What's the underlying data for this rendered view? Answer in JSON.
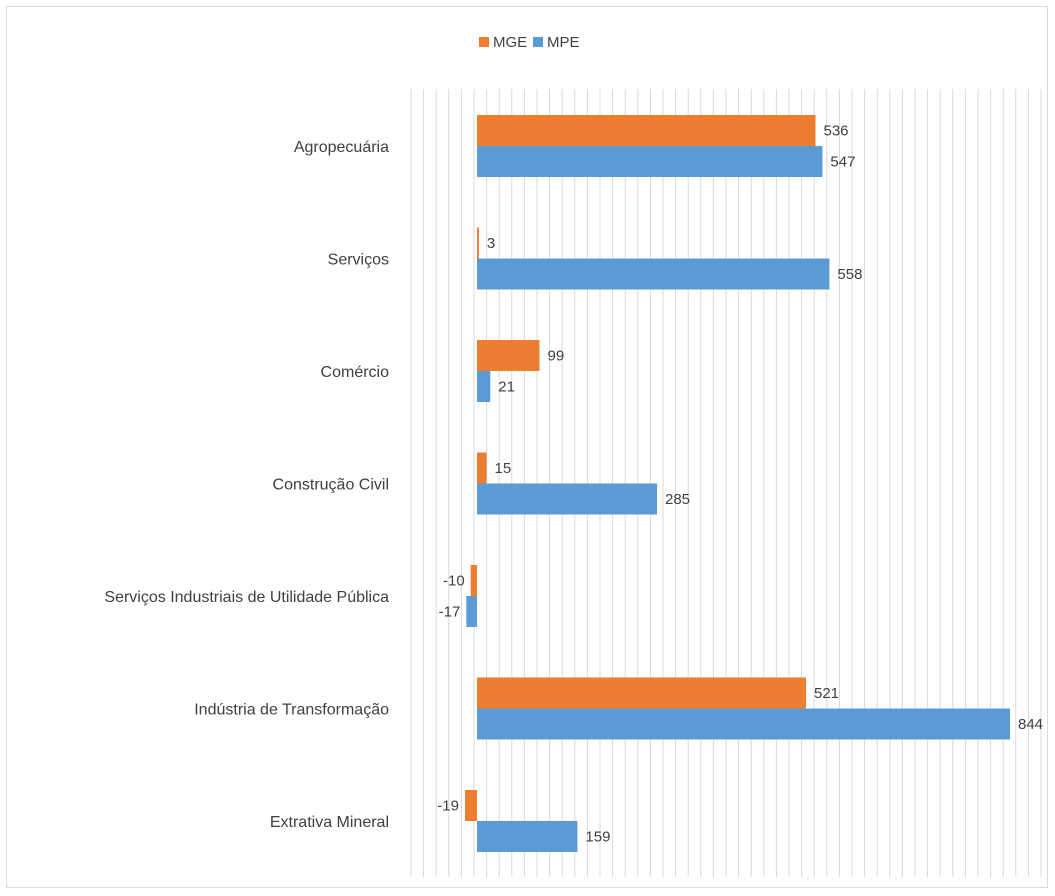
{
  "chart_data": {
    "type": "bar",
    "orientation": "horizontal",
    "categories": [
      "Agropecuária",
      "Serviços",
      "Comércio",
      "Construção Civil",
      "Serviços Industriais de Utilidade  Pública",
      "Indústria de Transformação",
      "Extrativa Mineral"
    ],
    "series": [
      {
        "name": "MGE",
        "color": "#ed7d31",
        "values": [
          536,
          3,
          99,
          15,
          -10,
          521,
          -19
        ]
      },
      {
        "name": "MPE",
        "color": "#5b9bd5",
        "values": [
          547,
          558,
          21,
          285,
          -17,
          844,
          159
        ]
      }
    ],
    "title": "",
    "xlabel": "",
    "ylabel": "",
    "xlim": [
      -105,
      875
    ],
    "grid": true,
    "gridline_color": "#d9d9d9",
    "legend": "top-center",
    "data_labels": true
  }
}
